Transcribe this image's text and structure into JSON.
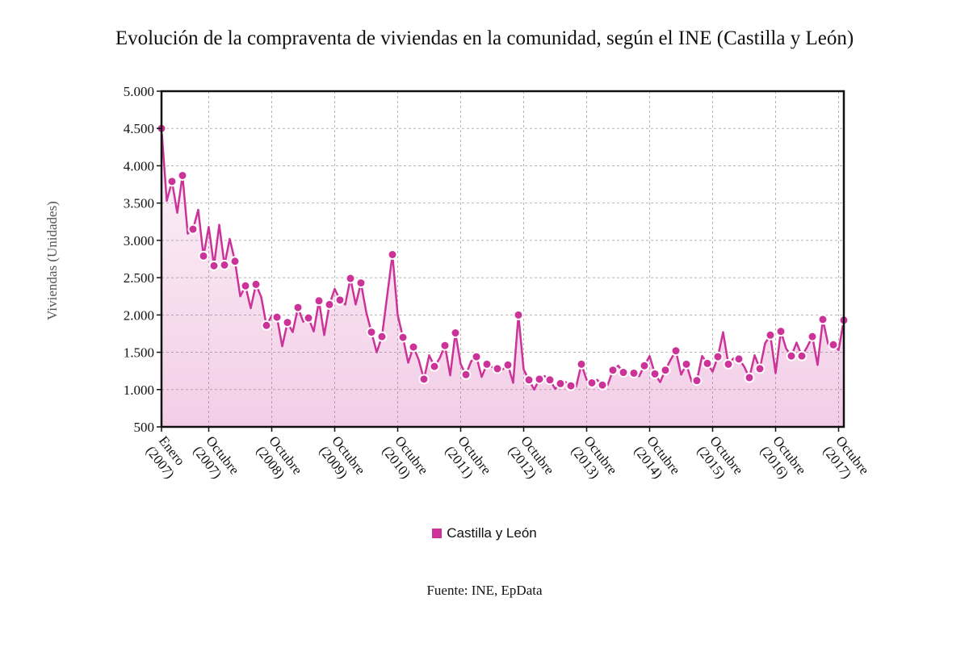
{
  "chart_data": {
    "type": "area",
    "title": "Evolución de la compraventa de viviendas en la comunidad, según el INE (Castilla y León)",
    "ylabel": "Viviendas (Unidades)",
    "ylim": [
      500,
      5000
    ],
    "y_ticks": [
      "500",
      "1.000",
      "1.500",
      "2.000",
      "2.500",
      "3.000",
      "3.500",
      "4.000",
      "4.500",
      "5.000"
    ],
    "x_ticks": [
      {
        "index": 0,
        "label": [
          "Enero",
          "(2007)"
        ]
      },
      {
        "index": 9,
        "label": [
          "Octubre",
          "(2007)"
        ]
      },
      {
        "index": 21,
        "label": [
          "Octubre",
          "(2008)"
        ]
      },
      {
        "index": 33,
        "label": [
          "Octubre",
          "(2009)"
        ]
      },
      {
        "index": 45,
        "label": [
          "Octubre",
          "(2010)"
        ]
      },
      {
        "index": 57,
        "label": [
          "Octubre",
          "(2011)"
        ]
      },
      {
        "index": 69,
        "label": [
          "Octubre",
          "(2012)"
        ]
      },
      {
        "index": 81,
        "label": [
          "Octubre",
          "(2013)"
        ]
      },
      {
        "index": 93,
        "label": [
          "Octubre",
          "(2014)"
        ]
      },
      {
        "index": 105,
        "label": [
          "Octubre",
          "(2015)"
        ]
      },
      {
        "index": 117,
        "label": [
          "Octubre",
          "(2016)"
        ]
      },
      {
        "index": 129,
        "label": [
          "Octubre",
          "(2017)"
        ]
      }
    ],
    "grid": true,
    "legend_position": "bottom-center",
    "series": [
      {
        "name": "Castilla y León",
        "color": "#cc3399",
        "values": [
          4500,
          3530,
          3790,
          3370,
          3870,
          3090,
          3150,
          3410,
          2790,
          3180,
          2660,
          3210,
          2670,
          3020,
          2720,
          2250,
          2390,
          2090,
          2410,
          2240,
          1860,
          1990,
          1970,
          1580,
          1900,
          1770,
          2100,
          1910,
          1960,
          1780,
          2190,
          1730,
          2140,
          2350,
          2200,
          2140,
          2490,
          2140,
          2430,
          2040,
          1770,
          1500,
          1710,
          2260,
          2810,
          2000,
          1700,
          1360,
          1570,
          1400,
          1140,
          1460,
          1310,
          1420,
          1590,
          1190,
          1760,
          1340,
          1200,
          1380,
          1440,
          1170,
          1340,
          1300,
          1280,
          1270,
          1330,
          1090,
          2000,
          1270,
          1130,
          1000,
          1140,
          1180,
          1130,
          1010,
          1080,
          1100,
          1050,
          1040,
          1340,
          1130,
          1090,
          1130,
          1060,
          1060,
          1260,
          1320,
          1230,
          1220,
          1220,
          1180,
          1320,
          1450,
          1210,
          1100,
          1260,
          1400,
          1520,
          1200,
          1340,
          1110,
          1120,
          1450,
          1350,
          1240,
          1440,
          1770,
          1340,
          1420,
          1410,
          1310,
          1160,
          1460,
          1280,
          1620,
          1730,
          1220,
          1780,
          1550,
          1450,
          1630,
          1450,
          1570,
          1710,
          1330,
          1940,
          1610,
          1600,
          1530,
          1930
        ]
      }
    ]
  },
  "legend": {
    "label": "Castilla y León"
  },
  "source": "Fuente: INE, EpData"
}
